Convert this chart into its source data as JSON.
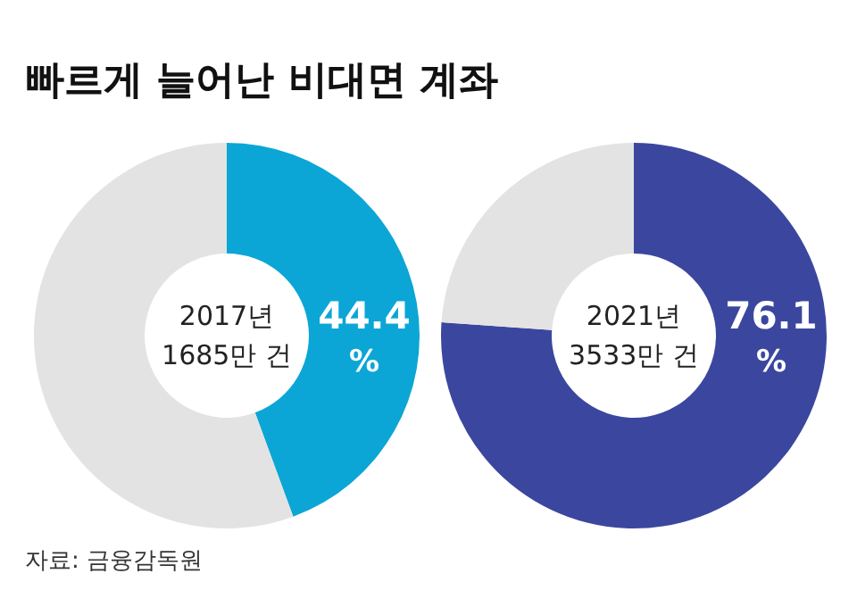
{
  "chart_data": [
    {
      "type": "donut",
      "title": "빠르게 늘어난 비대면 계좌",
      "categories": [
        null,
        null
      ],
      "values": [
        44.4,
        55.6
      ],
      "colors": [
        "#0ba6d6",
        "#e3e3e3"
      ],
      "value_labels": [
        "44.4 %",
        null
      ],
      "annotations": [
        "2017년",
        "1685만 건",
        "자료: 금융감독원"
      ]
    },
    {
      "type": "donut",
      "categories": [
        null,
        null
      ],
      "values": [
        76.1,
        23.9
      ],
      "colors": [
        "#3b479e",
        "#e3e3e3"
      ],
      "value_labels": [
        "76.1 %",
        null
      ],
      "annotations": [
        "2021년",
        "3533만 건"
      ]
    }
  ]
}
